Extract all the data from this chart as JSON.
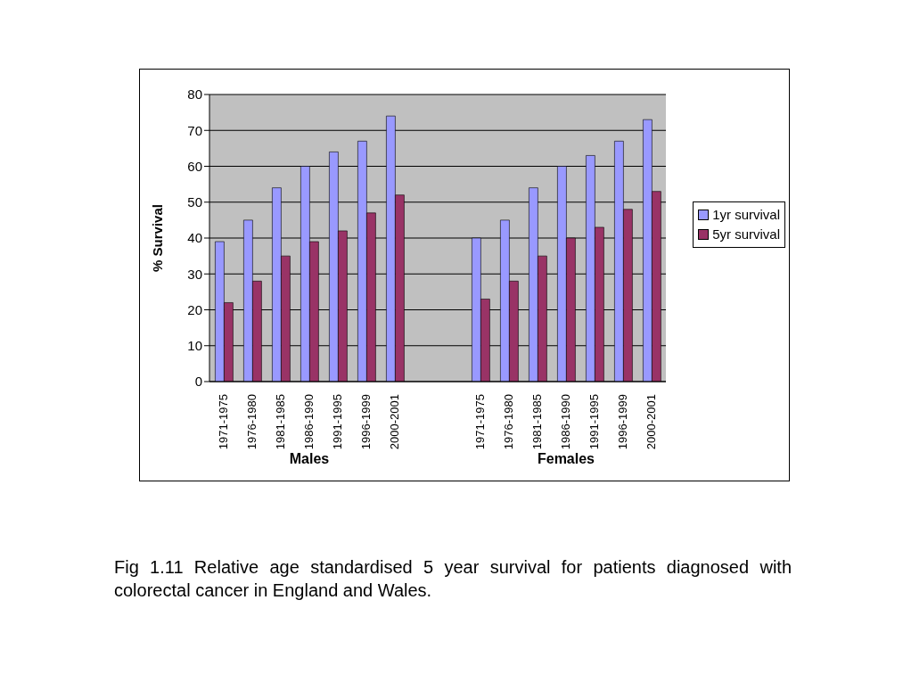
{
  "chart_data": {
    "type": "bar",
    "ylabel": "% Survival",
    "categories": [
      "1971-1975",
      "1976-1980",
      "1981-1985",
      "1986-1990",
      "1991-1995",
      "1996-1999",
      "2000-2001",
      null,
      null,
      "1971-1975",
      "1976-1980",
      "1981-1985",
      "1986-1990",
      "1991-1995",
      "1996-1999",
      "2000-2001"
    ],
    "series": [
      {
        "name": "1yr survival",
        "color": "#9999ff",
        "values": [
          39,
          45,
          54,
          60,
          64,
          67,
          74,
          null,
          null,
          40,
          45,
          54,
          60,
          63,
          67,
          73
        ]
      },
      {
        "name": "5yr survival",
        "color": "#993366",
        "values": [
          22,
          28,
          35,
          39,
          42,
          47,
          52,
          null,
          null,
          23,
          28,
          35,
          40,
          43,
          48,
          53
        ]
      }
    ],
    "ylim": [
      0,
      80
    ],
    "yticks": [
      0,
      10,
      20,
      30,
      40,
      50,
      60,
      70,
      80
    ],
    "grid": "y",
    "legend": "right",
    "annotations": [
      "Males",
      "Females",
      "Fig 1.11 Relative age standardised 5 year survival for patients diagnosed with colorectal cancer in England and Wales."
    ]
  }
}
